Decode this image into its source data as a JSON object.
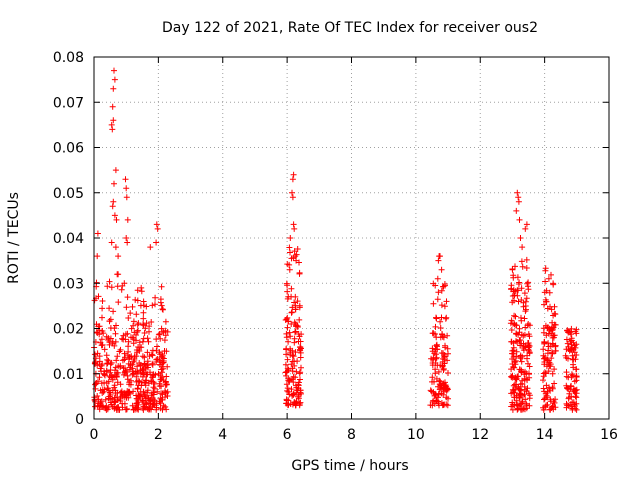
{
  "chart_data": {
    "type": "scatter",
    "title": "Day 122 of 2021, Rate Of TEC Index for receiver ous2",
    "xlabel": "GPS time / hours",
    "ylabel": "ROTI / TECUs",
    "xlim": [
      0,
      16
    ],
    "ylim": [
      0,
      0.08
    ],
    "xticks": [
      "0",
      "2",
      "4",
      "6",
      "8",
      "10",
      "12",
      "14",
      "16"
    ],
    "yticks": [
      "0",
      "0.01",
      "0.02",
      "0.03",
      "0.04",
      "0.05",
      "0.06",
      "0.07",
      "0.08"
    ],
    "grid": true,
    "marker": "+",
    "color": "#ff0000",
    "series": [
      {
        "name": "ROTI",
        "clusters": [
          {
            "x": [
              0.0,
              2.3
            ],
            "y": [
              0.002,
              0.012
            ],
            "n": 320
          },
          {
            "x": [
              0.0,
              2.3
            ],
            "y": [
              0.012,
              0.022
            ],
            "n": 160
          },
          {
            "x": [
              0.0,
              2.3
            ],
            "y": [
              0.022,
              0.031
            ],
            "n": 45
          }
        ],
        "points": [
          {
            "x": 0.12,
            "y": 0.041
          },
          {
            "x": 0.1,
            "y": 0.036
          },
          {
            "x": 0.62,
            "y": 0.077
          },
          {
            "x": 0.65,
            "y": 0.075
          },
          {
            "x": 0.6,
            "y": 0.073
          },
          {
            "x": 0.58,
            "y": 0.069
          },
          {
            "x": 0.6,
            "y": 0.066
          },
          {
            "x": 0.57,
            "y": 0.064
          },
          {
            "x": 0.55,
            "y": 0.065
          },
          {
            "x": 0.68,
            "y": 0.055
          },
          {
            "x": 0.62,
            "y": 0.052
          },
          {
            "x": 0.98,
            "y": 0.053
          },
          {
            "x": 1.0,
            "y": 0.051
          },
          {
            "x": 0.6,
            "y": 0.048
          },
          {
            "x": 0.58,
            "y": 0.047
          },
          {
            "x": 0.65,
            "y": 0.045
          },
          {
            "x": 0.7,
            "y": 0.044
          },
          {
            "x": 1.02,
            "y": 0.049
          },
          {
            "x": 1.05,
            "y": 0.044
          },
          {
            "x": 1.0,
            "y": 0.04
          },
          {
            "x": 1.03,
            "y": 0.039
          },
          {
            "x": 0.55,
            "y": 0.039
          },
          {
            "x": 0.68,
            "y": 0.038
          },
          {
            "x": 0.75,
            "y": 0.036
          },
          {
            "x": 1.95,
            "y": 0.043
          },
          {
            "x": 1.98,
            "y": 0.042
          },
          {
            "x": 1.93,
            "y": 0.039
          },
          {
            "x": 1.75,
            "y": 0.038
          },
          {
            "x": 0.72,
            "y": 0.032
          },
          {
            "x": 0.75,
            "y": 0.032
          }
        ]
      },
      {
        "name": "ROTI",
        "clusters": [
          {
            "x": [
              5.95,
              6.45
            ],
            "y": [
              0.003,
              0.02
            ],
            "n": 110
          },
          {
            "x": [
              5.95,
              6.4
            ],
            "y": [
              0.02,
              0.038
            ],
            "n": 45
          }
        ],
        "points": [
          {
            "x": 6.2,
            "y": 0.054
          },
          {
            "x": 6.18,
            "y": 0.053
          },
          {
            "x": 6.15,
            "y": 0.05
          },
          {
            "x": 6.18,
            "y": 0.049
          },
          {
            "x": 6.2,
            "y": 0.043
          },
          {
            "x": 6.22,
            "y": 0.042
          },
          {
            "x": 6.1,
            "y": 0.04
          },
          {
            "x": 6.25,
            "y": 0.036
          },
          {
            "x": 6.28,
            "y": 0.035
          }
        ]
      },
      {
        "name": "ROTI",
        "clusters": [
          {
            "x": [
              10.45,
              11.0
            ],
            "y": [
              0.003,
              0.018
            ],
            "n": 100
          },
          {
            "x": [
              10.45,
              11.0
            ],
            "y": [
              0.018,
              0.03
            ],
            "n": 30
          }
        ],
        "points": [
          {
            "x": 10.72,
            "y": 0.036
          },
          {
            "x": 10.75,
            "y": 0.036
          },
          {
            "x": 10.7,
            "y": 0.035
          },
          {
            "x": 10.8,
            "y": 0.033
          },
          {
            "x": 10.68,
            "y": 0.031
          },
          {
            "x": 10.95,
            "y": 0.026
          }
        ]
      },
      {
        "name": "ROTI",
        "clusters": [
          {
            "x": [
              12.95,
              13.55
            ],
            "y": [
              0.002,
              0.02
            ],
            "n": 150
          },
          {
            "x": [
              12.95,
              13.55
            ],
            "y": [
              0.02,
              0.036
            ],
            "n": 55
          }
        ],
        "points": [
          {
            "x": 13.15,
            "y": 0.05
          },
          {
            "x": 13.18,
            "y": 0.049
          },
          {
            "x": 13.2,
            "y": 0.048
          },
          {
            "x": 13.12,
            "y": 0.046
          },
          {
            "x": 13.22,
            "y": 0.044
          },
          {
            "x": 13.45,
            "y": 0.043
          },
          {
            "x": 13.4,
            "y": 0.042
          },
          {
            "x": 13.25,
            "y": 0.04
          },
          {
            "x": 13.3,
            "y": 0.038
          }
        ]
      },
      {
        "name": "ROTI",
        "clusters": [
          {
            "x": [
              13.95,
              14.35
            ],
            "y": [
              0.002,
              0.02
            ],
            "n": 90
          },
          {
            "x": [
              13.95,
              14.35
            ],
            "y": [
              0.02,
              0.034
            ],
            "n": 30
          }
        ]
      },
      {
        "name": "ROTI",
        "clusters": [
          {
            "x": [
              14.65,
              15.0
            ],
            "y": [
              0.002,
              0.02
            ],
            "n": 90
          }
        ]
      }
    ]
  }
}
